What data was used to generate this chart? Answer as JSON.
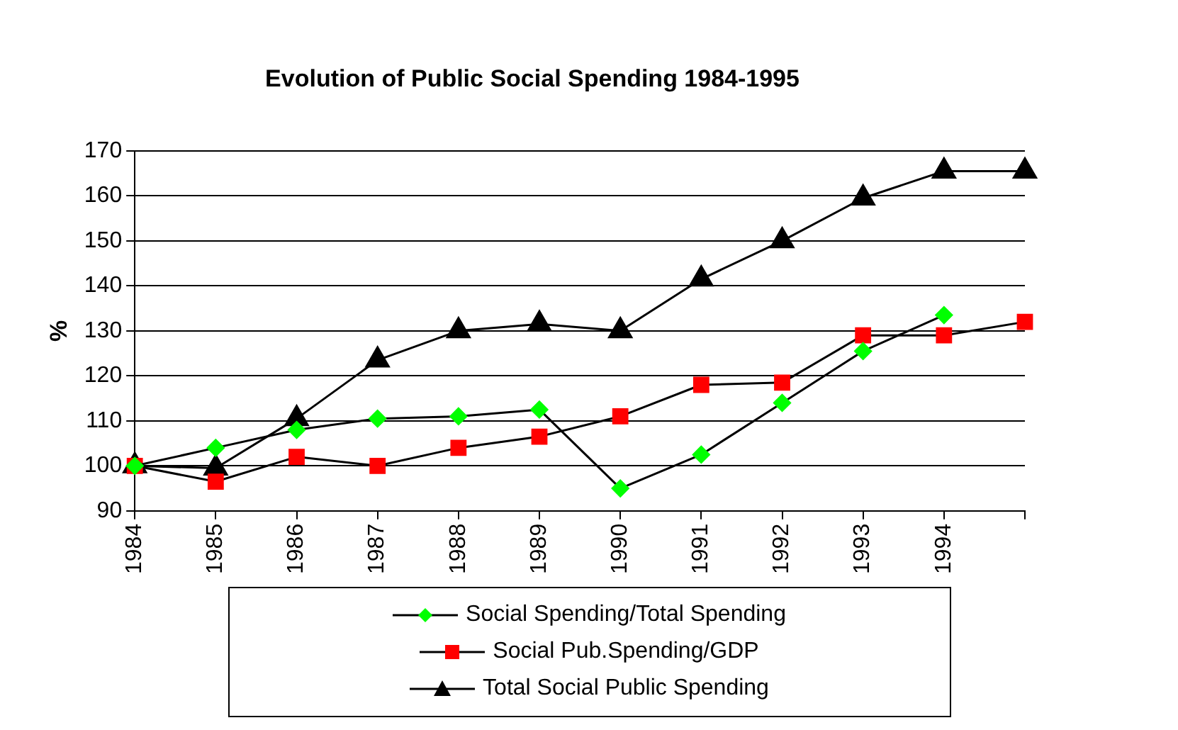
{
  "chart_data": {
    "type": "line",
    "title": "Evolution of Public Social Spending 1984-1995",
    "ylabel": "%",
    "categories": [
      "1984",
      "1985",
      "1986",
      "1987",
      "1988",
      "1989",
      "1990",
      "1991",
      "1992",
      "1993",
      "1994",
      null
    ],
    "series": [
      {
        "name": "Social Spending/Total Spending",
        "color": "#00ff00",
        "marker": "diamond",
        "values": [
          100,
          104,
          108,
          110.5,
          111,
          112.5,
          95,
          102.5,
          114,
          125.5,
          133.5,
          null
        ]
      },
      {
        "name": "Social Pub.Spending/GDP",
        "color": "#ff0000",
        "marker": "square",
        "values": [
          100,
          96.5,
          102,
          100,
          104,
          106.5,
          111,
          118,
          118.5,
          129,
          129,
          132
        ]
      },
      {
        "name": "Total Social Public Spending",
        "color": "#000000",
        "marker": "triangle",
        "values": [
          100,
          99.5,
          110.5,
          123.5,
          130,
          131.5,
          130,
          141.5,
          150,
          159.5,
          165.5,
          165.5
        ]
      }
    ],
    "ylim": [
      90,
      170
    ],
    "yticks": [
      90,
      100,
      110,
      120,
      130,
      140,
      150,
      160,
      170
    ],
    "grid": "y",
    "legend": "bottom",
    "line_style": "solid"
  }
}
